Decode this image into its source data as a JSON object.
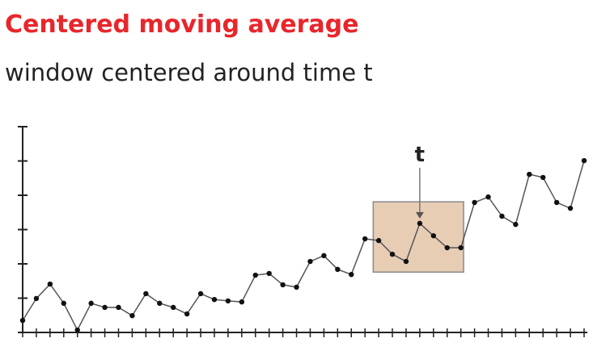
{
  "chart_data": {
    "type": "line",
    "title": "Centered moving average",
    "subtitle": "window centered around time t",
    "x": [
      0,
      1,
      2,
      3,
      4,
      5,
      6,
      7,
      8,
      9,
      10,
      11,
      12,
      13,
      14,
      15,
      16,
      17,
      18,
      19,
      20,
      21,
      22,
      23,
      24,
      25,
      26,
      27,
      28,
      29,
      30,
      31,
      32,
      33,
      34,
      35,
      36,
      37,
      38,
      39,
      40,
      41
    ],
    "series": [
      {
        "color": "#555555",
        "marker_color": "#111111",
        "values": [
          0.35,
          0.99,
          1.41,
          0.85,
          0.07,
          0.85,
          0.73,
          0.73,
          0.49,
          1.13,
          0.85,
          0.73,
          0.54,
          1.13,
          0.96,
          0.92,
          0.89,
          1.67,
          1.72,
          1.39,
          1.32,
          2.07,
          2.24,
          1.84,
          1.69,
          2.73,
          2.68,
          2.28,
          2.07,
          3.18,
          2.82,
          2.47,
          2.47,
          3.79,
          3.95,
          3.39,
          3.15,
          4.61,
          4.52,
          3.79,
          3.62,
          5.01
        ]
      }
    ],
    "xlim": [
      0,
      41
    ],
    "xticks": [
      0,
      1,
      2,
      3,
      4,
      5,
      6,
      7,
      8,
      9,
      10,
      11,
      12,
      13,
      14,
      15,
      16,
      17,
      18,
      19,
      20,
      21,
      22,
      23,
      24,
      25,
      26,
      27,
      28,
      29,
      30,
      31,
      32,
      33,
      34,
      35,
      36,
      37,
      38,
      39,
      40,
      41
    ],
    "ylim": [
      0,
      6
    ],
    "yticks": [
      0,
      1,
      2,
      3,
      4,
      5,
      6
    ],
    "window": {
      "x": [
        25.6,
        32.2
      ],
      "y": [
        1.76,
        3.81
      ],
      "fill": "#e8cdb5",
      "stroke": "#8a8a8a"
    },
    "annotation": {
      "text": "t",
      "x": 29
    }
  }
}
